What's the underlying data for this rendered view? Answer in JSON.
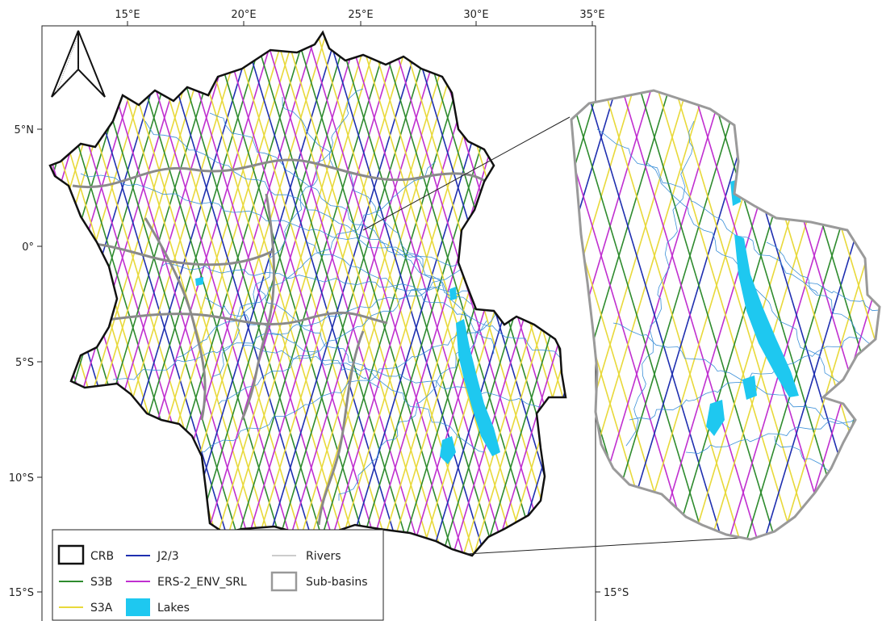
{
  "map": {
    "lon_ticks": [
      "15°E",
      "20°E",
      "25°E",
      "30°E",
      "35°E"
    ],
    "lat_ticks": [
      "5°N",
      "0°",
      "5°S",
      "10°S",
      "15°S"
    ],
    "right_lat_tick": "15°S"
  },
  "legend": {
    "items": [
      {
        "label": "CRB",
        "symbol": "box",
        "color": "#111111"
      },
      {
        "label": "S3B",
        "symbol": "line",
        "color": "#2e8b2e"
      },
      {
        "label": "S3A",
        "symbol": "line",
        "color": "#e8d93a"
      },
      {
        "label": "J2/3",
        "symbol": "line",
        "color": "#1f2fb0"
      },
      {
        "label": "ERS-2_ENV_SRL",
        "symbol": "line",
        "color": "#c02fd0"
      },
      {
        "label": "Lakes",
        "symbol": "fill",
        "color": "#1ec8f0"
      },
      {
        "label": "Rivers",
        "symbol": "line",
        "color": "#999999"
      },
      {
        "label": "Sub-basins",
        "symbol": "box",
        "color": "#999999"
      }
    ]
  },
  "colors": {
    "boundary": "#111111",
    "subbasin": "#8a8a8a",
    "s3a": "#e8d93a",
    "s3b": "#2e8b2e",
    "j23": "#1f2fb0",
    "ers": "#c02fd0",
    "lakes": "#1ec8f0",
    "rivers": "#3a8fd8"
  }
}
